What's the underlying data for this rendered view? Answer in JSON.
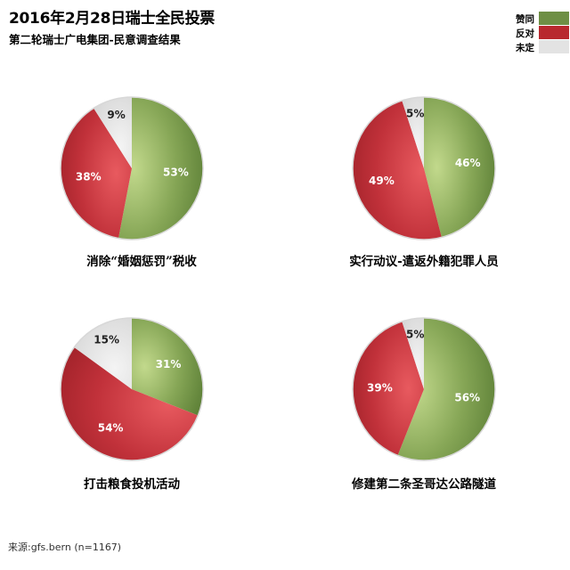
{
  "title": "2016年2月28日瑞士全民投票",
  "subtitle": "第二轮瑞士广电集团-民意调查结果",
  "legend": [
    {
      "label": "赞同",
      "color": "#6e8f45"
    },
    {
      "label": "反对",
      "color": "#b8282e"
    },
    {
      "label": "未定",
      "color": "#e3e3e3"
    }
  ],
  "source": "来源:gfs.bern (n=1167)",
  "chart_data": [
    {
      "type": "pie",
      "title": "消除“婚姻惩罚”税收",
      "slices": [
        {
          "name": "赞同",
          "value": 53,
          "label": "53%"
        },
        {
          "name": "反对",
          "value": 38,
          "label": "38%"
        },
        {
          "name": "未定",
          "value": 9,
          "label": "9%"
        }
      ]
    },
    {
      "type": "pie",
      "title": "实行动议-遣返外籍犯罪人员",
      "slices": [
        {
          "name": "赞同",
          "value": 46,
          "label": "46%"
        },
        {
          "name": "反对",
          "value": 49,
          "label": "49%"
        },
        {
          "name": "未定",
          "value": 5,
          "label": "5%"
        }
      ]
    },
    {
      "type": "pie",
      "title": "打击粮食投机活动",
      "slices": [
        {
          "name": "赞同",
          "value": 31,
          "label": "31%"
        },
        {
          "name": "反对",
          "value": 54,
          "label": "54%"
        },
        {
          "name": "未定",
          "value": 15,
          "label": "15%"
        }
      ]
    },
    {
      "type": "pie",
      "title": "修建第二条圣哥达公路隧道",
      "slices": [
        {
          "name": "赞同",
          "value": 56,
          "label": "56%"
        },
        {
          "name": "反对",
          "value": 39,
          "label": "39%"
        },
        {
          "name": "未定",
          "value": 5,
          "label": "5%"
        }
      ]
    }
  ]
}
